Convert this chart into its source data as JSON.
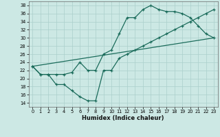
{
  "xlabel": "Humidex (Indice chaleur)",
  "bg_color": "#cce8e4",
  "grid_color": "#aacfcb",
  "line_color": "#1a6b5a",
  "ylim": [
    13,
    39
  ],
  "xlim": [
    -0.5,
    23.5
  ],
  "yticks": [
    14,
    16,
    18,
    20,
    22,
    24,
    26,
    28,
    30,
    32,
    34,
    36,
    38
  ],
  "xticks": [
    0,
    1,
    2,
    3,
    4,
    5,
    6,
    7,
    8,
    9,
    10,
    11,
    12,
    13,
    14,
    15,
    16,
    17,
    18,
    19,
    20,
    21,
    22,
    23
  ],
  "line1_x": [
    0,
    1,
    2,
    3,
    4,
    5,
    6,
    7,
    8,
    9,
    10,
    11,
    12,
    13,
    14,
    15,
    16,
    17,
    18,
    19,
    20,
    21,
    22,
    23
  ],
  "line1_y": [
    23,
    21,
    21,
    21,
    21,
    21.5,
    24,
    22,
    22,
    26,
    27,
    31,
    35,
    35,
    37,
    38,
    37,
    36.5,
    36.5,
    36,
    35,
    33,
    31,
    30
  ],
  "line2_x": [
    0,
    23
  ],
  "line2_y": [
    23,
    30
  ],
  "line3_x": [
    0,
    1,
    2,
    3,
    4,
    5,
    6,
    7,
    8,
    9,
    10,
    11,
    12,
    13,
    14,
    15,
    16,
    17,
    18,
    19,
    20,
    21,
    22,
    23
  ],
  "line3_y": [
    23,
    21,
    21,
    18.5,
    18.5,
    17,
    15.5,
    14.5,
    14.5,
    22,
    22,
    25,
    26,
    27,
    28,
    29,
    30,
    31,
    32,
    33,
    34,
    35,
    36,
    37
  ]
}
